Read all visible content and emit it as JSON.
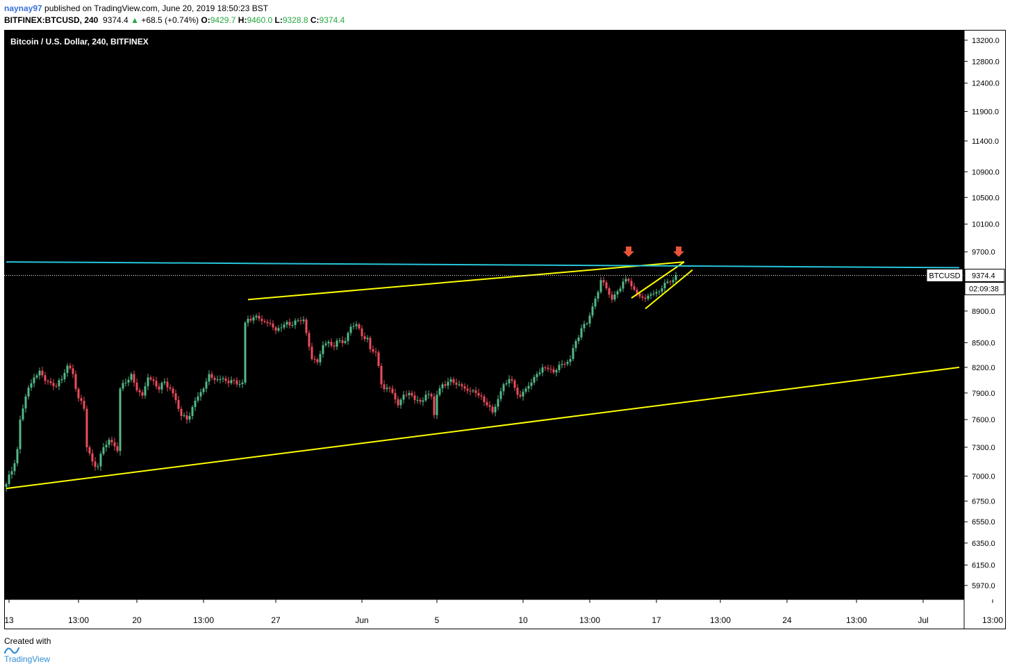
{
  "header": {
    "publisher": "naynay97",
    "published_text": "published on TradingView.com, June 20, 2019 18:50:23 BST",
    "symbol": "BITFINEX:BTCUSD, 240",
    "last": "9374.4",
    "change_arrow": "▲",
    "change": "+68.5 (+0.74%)",
    "o_label": "O:",
    "o": "9429.7",
    "h_label": "H:",
    "h": "9460.0",
    "l_label": "L:",
    "l": "9328.8",
    "c_label": "C:",
    "c": "9374.4"
  },
  "footer": {
    "created_with": "Created with",
    "brand": "TradingView"
  },
  "colors": {
    "background": "#000000",
    "up": "#53b987",
    "down": "#eb4d5c",
    "trendline": "#ffff00",
    "resistance": "#26c6da",
    "arrow": "#e8553b"
  },
  "chart_data": {
    "type": "candlestick",
    "title": "Bitcoin / U.S. Dollar, 240, BITFINEX",
    "scale": "log",
    "ylim": [
      5850,
      13400
    ],
    "y_ticks": [
      5970,
      6150,
      6350,
      6550,
      6750,
      7000,
      7300,
      7600,
      7900,
      8200,
      8500,
      8900,
      9700,
      10100,
      10500,
      10900,
      11400,
      11900,
      12400,
      12800,
      13200
    ],
    "y_tick_labels": [
      "5970.0",
      "6150.0",
      "6350.0",
      "6550.0",
      "6750.0",
      "7000.0",
      "7300.0",
      "7600.0",
      "7900.0",
      "8200.0",
      "8500.0",
      "8900.0",
      "9700.0",
      "10100.0",
      "10500.0",
      "10900.0",
      "11400.0",
      "11900.0",
      "12400.0",
      "12800.0",
      "13200.0"
    ],
    "x_tick_labels": [
      "13",
      "13:00",
      "20",
      "13:00",
      "27",
      "Jun",
      "5",
      "10",
      "13:00",
      "17",
      "13:00",
      "24",
      "13:00",
      "Jul",
      "13:00"
    ],
    "x_tick_bars": [
      1,
      26,
      47,
      71,
      97,
      128,
      155,
      186,
      210,
      234,
      257,
      281,
      306,
      330,
      355
    ],
    "current_price": {
      "label": "BTCUSD",
      "value": "9374.4",
      "countdown": "02:09:38"
    },
    "close_anchors": [
      [
        0,
        6920
      ],
      [
        2,
        7050
      ],
      [
        4,
        7280
      ],
      [
        5,
        7600
      ],
      [
        7,
        7860
      ],
      [
        10,
        8080
      ],
      [
        12,
        8160
      ],
      [
        14,
        8040
      ],
      [
        17,
        7980
      ],
      [
        20,
        8060
      ],
      [
        22,
        8220
      ],
      [
        24,
        8120
      ],
      [
        26,
        7840
      ],
      [
        28,
        7720
      ],
      [
        29,
        7300
      ],
      [
        31,
        7150
      ],
      [
        33,
        7100
      ],
      [
        35,
        7300
      ],
      [
        37,
        7380
      ],
      [
        39,
        7310
      ],
      [
        40,
        7260
      ],
      [
        41,
        7950
      ],
      [
        43,
        8020
      ],
      [
        45,
        8120
      ],
      [
        47,
        7930
      ],
      [
        49,
        7870
      ],
      [
        51,
        8080
      ],
      [
        53,
        8040
      ],
      [
        55,
        7940
      ],
      [
        57,
        8030
      ],
      [
        59,
        7950
      ],
      [
        61,
        7820
      ],
      [
        63,
        7640
      ],
      [
        65,
        7600
      ],
      [
        67,
        7740
      ],
      [
        69,
        7860
      ],
      [
        71,
        7950
      ],
      [
        73,
        8120
      ],
      [
        75,
        8050
      ],
      [
        77,
        8060
      ],
      [
        79,
        8040
      ],
      [
        81,
        8050
      ],
      [
        83,
        8000
      ],
      [
        85,
        8020
      ],
      [
        86,
        8750
      ],
      [
        87,
        8800
      ],
      [
        89,
        8820
      ],
      [
        91,
        8800
      ],
      [
        93,
        8760
      ],
      [
        95,
        8740
      ],
      [
        97,
        8650
      ],
      [
        99,
        8690
      ],
      [
        101,
        8760
      ],
      [
        103,
        8720
      ],
      [
        105,
        8780
      ],
      [
        107,
        8790
      ],
      [
        108,
        8620
      ],
      [
        110,
        8300
      ],
      [
        112,
        8260
      ],
      [
        114,
        8470
      ],
      [
        116,
        8510
      ],
      [
        118,
        8450
      ],
      [
        120,
        8530
      ],
      [
        122,
        8520
      ],
      [
        124,
        8700
      ],
      [
        126,
        8730
      ],
      [
        128,
        8580
      ],
      [
        130,
        8560
      ],
      [
        131,
        8420
      ],
      [
        133,
        8380
      ],
      [
        135,
        8000
      ],
      [
        137,
        7960
      ],
      [
        139,
        7900
      ],
      [
        141,
        7760
      ],
      [
        143,
        7880
      ],
      [
        145,
        7900
      ],
      [
        147,
        7820
      ],
      [
        149,
        7800
      ],
      [
        151,
        7880
      ],
      [
        153,
        7860
      ],
      [
        154,
        7650
      ],
      [
        155,
        7880
      ],
      [
        157,
        8000
      ],
      [
        159,
        8030
      ],
      [
        161,
        8020
      ],
      [
        163,
        8000
      ],
      [
        165,
        7950
      ],
      [
        167,
        7920
      ],
      [
        169,
        7900
      ],
      [
        171,
        7860
      ],
      [
        173,
        7760
      ],
      [
        175,
        7680
      ],
      [
        177,
        7830
      ],
      [
        179,
        8000
      ],
      [
        181,
        8060
      ],
      [
        183,
        7960
      ],
      [
        185,
        7860
      ],
      [
        187,
        7950
      ],
      [
        189,
        8020
      ],
      [
        191,
        8120
      ],
      [
        193,
        8200
      ],
      [
        195,
        8180
      ],
      [
        197,
        8140
      ],
      [
        199,
        8230
      ],
      [
        201,
        8240
      ],
      [
        203,
        8300
      ],
      [
        205,
        8520
      ],
      [
        207,
        8680
      ],
      [
        209,
        8740
      ],
      [
        211,
        8960
      ],
      [
        213,
        9150
      ],
      [
        214,
        9310
      ],
      [
        216,
        9200
      ],
      [
        218,
        9050
      ],
      [
        220,
        9160
      ],
      [
        222,
        9290
      ],
      [
        224,
        9300
      ],
      [
        226,
        9180
      ],
      [
        228,
        9090
      ],
      [
        230,
        9060
      ],
      [
        232,
        9120
      ],
      [
        234,
        9150
      ],
      [
        236,
        9200
      ],
      [
        238,
        9290
      ],
      [
        240,
        9310
      ],
      [
        241,
        9374.4
      ]
    ],
    "trendlines": [
      {
        "name": "lower-support",
        "color": "#ffff00",
        "from": [
          0,
          6875
        ],
        "to": [
          343,
          8200
        ]
      },
      {
        "name": "upper-wedge",
        "color": "#ffff00",
        "from": [
          87,
          9050
        ],
        "to": [
          244,
          9560
        ]
      },
      {
        "name": "channel-top",
        "color": "#ffff00",
        "from": [
          225,
          9070
        ],
        "to": [
          244,
          9560
        ]
      },
      {
        "name": "channel-bottom",
        "color": "#ffff00",
        "from": [
          230,
          8930
        ],
        "to": [
          247,
          9450
        ]
      },
      {
        "name": "resistance",
        "color": "#26c6da",
        "from": [
          0,
          9560
        ],
        "to": [
          343,
          9480
        ]
      }
    ],
    "markers": [
      {
        "name": "sell-arrow-1",
        "bar": 224,
        "price": 9640
      },
      {
        "name": "sell-arrow-2",
        "bar": 242,
        "price": 9640
      }
    ]
  }
}
